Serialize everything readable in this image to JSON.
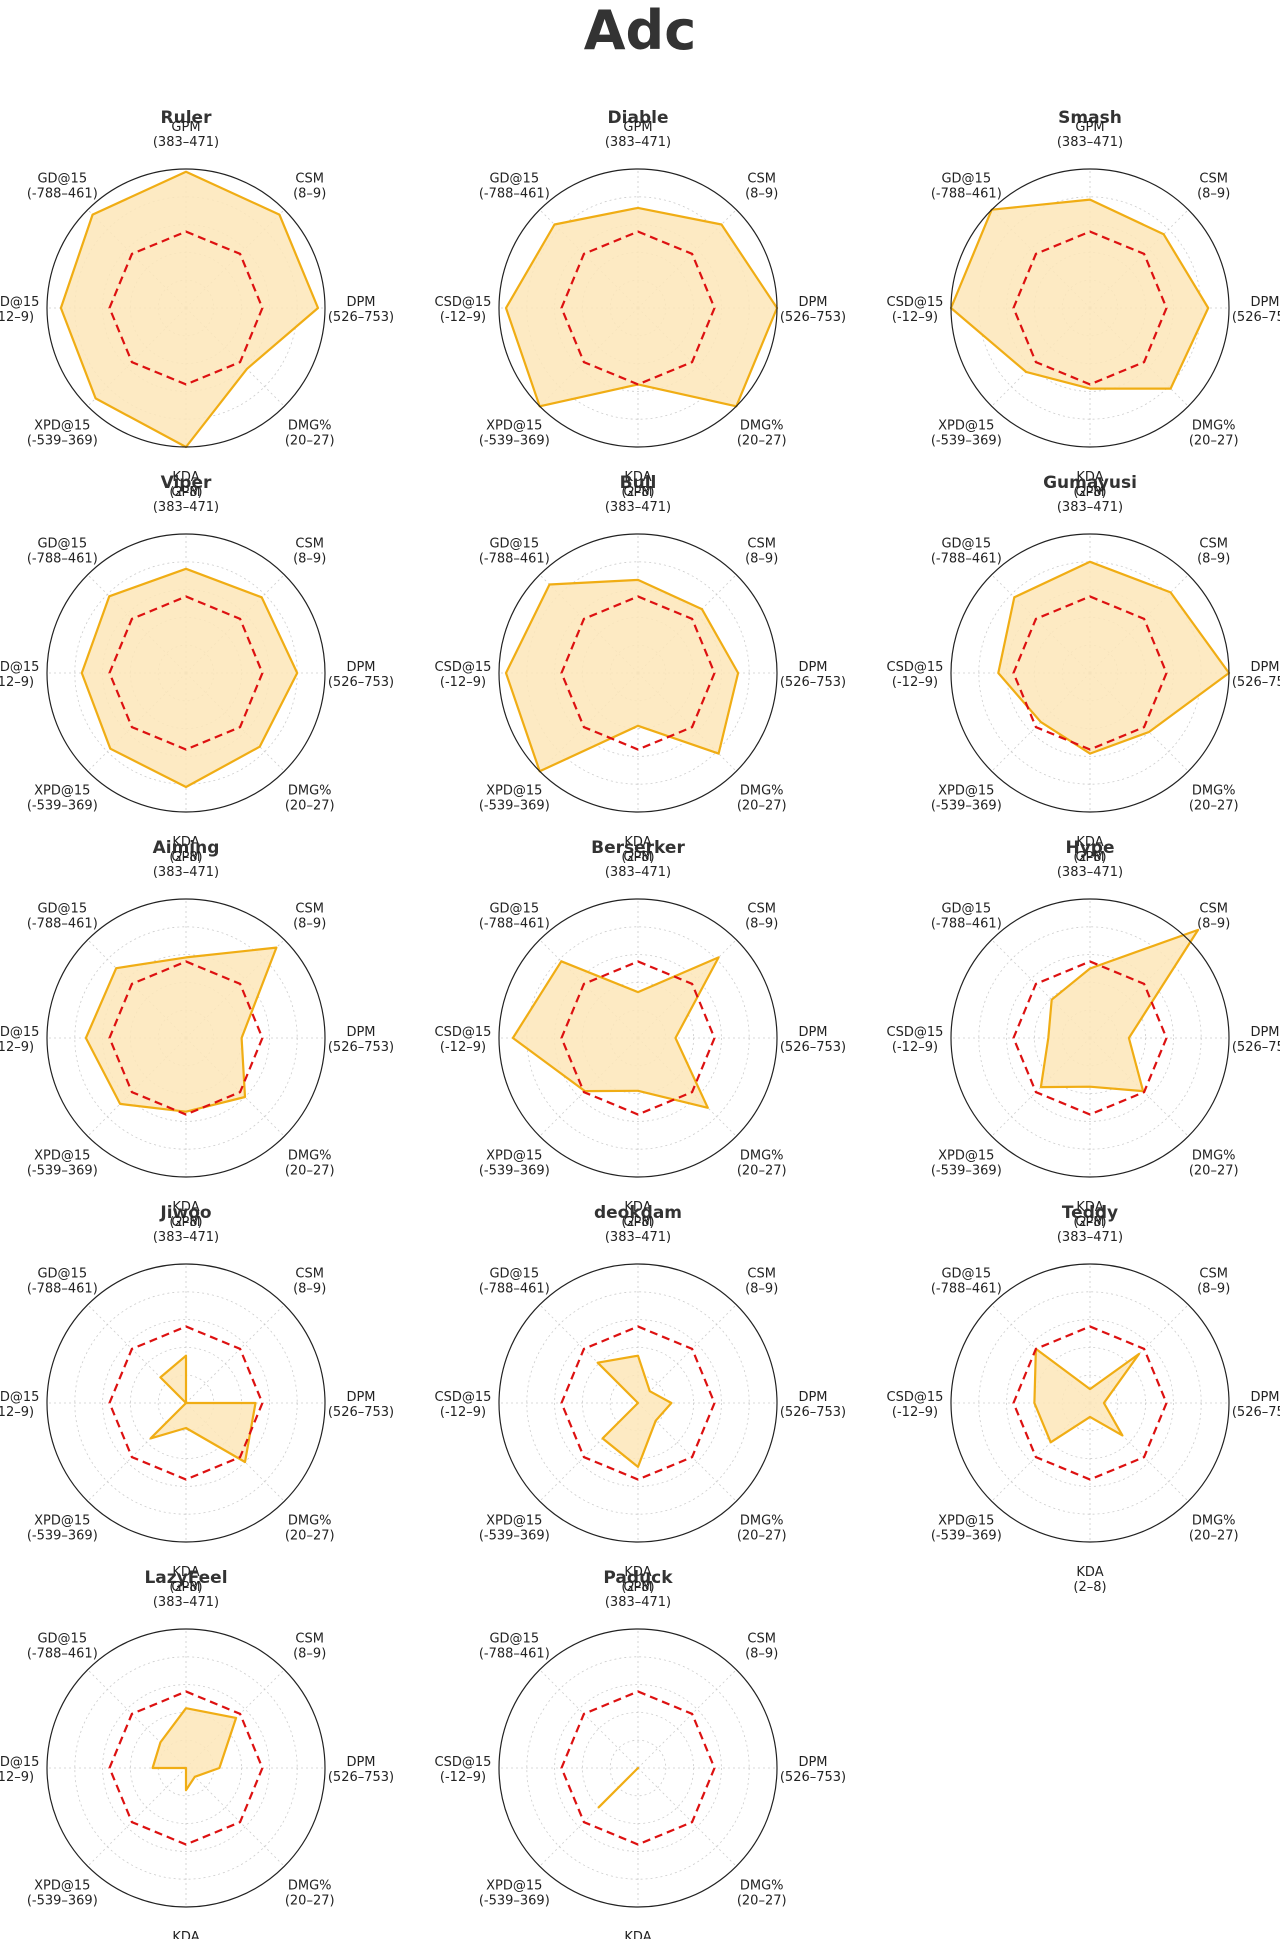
{
  "title": "Adc",
  "colors": {
    "player_fill": "#fde6b8",
    "player_line": "#f0ad14",
    "baseline_line": "#dd1111",
    "outer_ring": "#222222",
    "grid": "#cccccc"
  },
  "chart_data": {
    "type": "radar",
    "axes": [
      {
        "name": "GPM",
        "range": "(383–471)"
      },
      {
        "name": "CSM",
        "range": "(8–9)"
      },
      {
        "name": "DPM",
        "range": "(526–753)"
      },
      {
        "name": "DMG%",
        "range": "(20–27)"
      },
      {
        "name": "KDA",
        "range": "(2–8)"
      },
      {
        "name": "XPD@15",
        "range": "(-539–369)"
      },
      {
        "name": "CSD@15",
        "range": "(-12–9)"
      },
      {
        "name": "GD@15",
        "range": "(-788–461)"
      }
    ],
    "rlim": [
      0,
      1
    ],
    "grid_rings": [
      0.2,
      0.4,
      0.6,
      0.8
    ],
    "baseline_value": 0.55,
    "players": [
      {
        "name": "Ruler",
        "values": [
          0.98,
          0.95,
          0.95,
          0.62,
          1.0,
          0.92,
          0.9,
          0.95
        ]
      },
      {
        "name": "Diable",
        "values": [
          0.72,
          0.85,
          1.0,
          1.0,
          0.55,
          1.0,
          0.95,
          0.85
        ]
      },
      {
        "name": "Smash",
        "values": [
          0.78,
          0.75,
          0.85,
          0.82,
          0.58,
          0.65,
          1.0,
          1.0
        ]
      },
      {
        "name": "Viper",
        "values": [
          0.75,
          0.77,
          0.8,
          0.75,
          0.82,
          0.77,
          0.75,
          0.78
        ]
      },
      {
        "name": "Bull",
        "values": [
          0.67,
          0.65,
          0.72,
          0.82,
          0.38,
          1.0,
          0.95,
          0.9
        ]
      },
      {
        "name": "Gumayusi",
        "values": [
          0.8,
          0.82,
          1.0,
          0.6,
          0.58,
          0.5,
          0.66,
          0.77
        ]
      },
      {
        "name": "Aiming",
        "values": [
          0.58,
          0.92,
          0.4,
          0.6,
          0.53,
          0.67,
          0.72,
          0.71
        ]
      },
      {
        "name": "Berserker",
        "values": [
          0.33,
          0.82,
          0.27,
          0.71,
          0.38,
          0.54,
          0.9,
          0.78
        ]
      },
      {
        "name": "Hype",
        "values": [
          0.5,
          1.1,
          0.28,
          0.54,
          0.35,
          0.5,
          0.3,
          0.39
        ]
      },
      {
        "name": "Jiwoo",
        "values": [
          0.34,
          0.0,
          0.5,
          0.6,
          0.18,
          0.36,
          0.0,
          0.26
        ]
      },
      {
        "name": "deokdam",
        "values": [
          0.34,
          0.12,
          0.24,
          0.18,
          0.46,
          0.36,
          0.0,
          0.41
        ]
      },
      {
        "name": "Teddy",
        "values": [
          0.1,
          0.5,
          0.1,
          0.33,
          0.1,
          0.4,
          0.4,
          0.55
        ]
      },
      {
        "name": "LazyFeel",
        "values": [
          0.43,
          0.51,
          0.24,
          0.09,
          0.16,
          0.0,
          0.24,
          0.26
        ]
      },
      {
        "name": "Paduck",
        "values": [
          0.0,
          0.0,
          0.0,
          0.0,
          0.0,
          0.4,
          0.0,
          0.0
        ]
      }
    ]
  }
}
